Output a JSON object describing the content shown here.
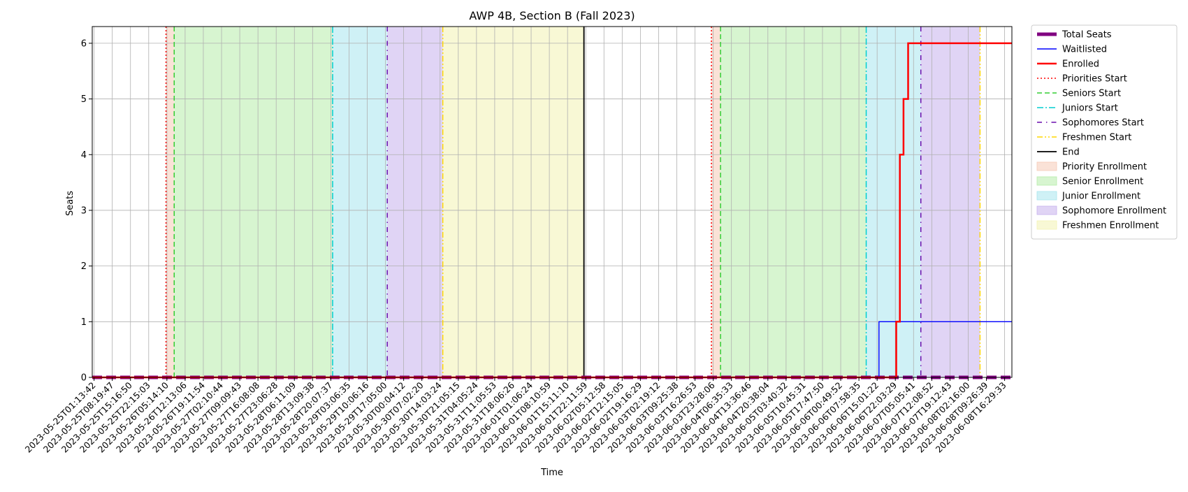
{
  "chart_data": {
    "type": "line",
    "title": "AWP 4B, Section B (Fall 2023)",
    "xlabel": "Time",
    "ylabel": "Seats",
    "ylim": [
      0,
      6.3
    ],
    "yticks": [
      0,
      1,
      2,
      3,
      4,
      5,
      6
    ],
    "grid": true,
    "legend_placement": "outside right",
    "x_ticks": [
      "2023-05-25T01:13:42",
      "2023-05-25T08:19:47",
      "2023-05-25T15:16:50",
      "2023-05-25T22:15:03",
      "2023-05-26T05:14:10",
      "2023-05-26T12:13:06",
      "2023-05-26T19:11:54",
      "2023-05-27T02:10:44",
      "2023-05-27T09:09:43",
      "2023-05-27T16:08:08",
      "2023-05-27T23:06:28",
      "2023-05-28T06:11:09",
      "2023-05-28T13:09:38",
      "2023-05-28T20:07:37",
      "2023-05-29T03:06:35",
      "2023-05-29T10:06:16",
      "2023-05-29T17:05:00",
      "2023-05-30T00:04:12",
      "2023-05-30T07:02:20",
      "2023-05-30T14:03:24",
      "2023-05-30T21:05:15",
      "2023-05-31T04:05:24",
      "2023-05-31T11:05:53",
      "2023-05-31T18:06:26",
      "2023-06-01T01:06:24",
      "2023-06-01T08:10:59",
      "2023-06-01T15:11:10",
      "2023-06-01T22:11:59",
      "2023-06-02T05:12:58",
      "2023-06-02T12:15:05",
      "2023-06-02T19:16:29",
      "2023-06-03T02:19:12",
      "2023-06-03T09:25:38",
      "2023-06-03T16:26:53",
      "2023-06-03T23:28:06",
      "2023-06-04T06:35:33",
      "2023-06-04T13:36:46",
      "2023-06-04T20:38:04",
      "2023-06-05T03:40:32",
      "2023-06-05T10:45:31",
      "2023-06-05T17:47:50",
      "2023-06-06T00:49:52",
      "2023-06-06T07:58:35",
      "2023-06-06T15:01:22",
      "2023-06-06T22:03:29",
      "2023-06-07T05:05:41",
      "2023-06-07T12:08:52",
      "2023-06-07T19:12:43",
      "2023-06-08T02:16:00",
      "2023-06-08T09:26:39",
      "2023-06-08T16:29:33"
    ],
    "x_range_ticks": [
      -0.1,
      50.4
    ],
    "series": [
      {
        "name": "Total Seats",
        "color": "#800080",
        "style": "thick-dashed",
        "points": [
          [
            -0.1,
            0
          ],
          [
            50.4,
            0
          ]
        ]
      },
      {
        "name": "Waitlisted",
        "color": "#0000ff",
        "style": "solid-thin",
        "points": [
          [
            -0.1,
            0
          ],
          [
            43.1,
            0
          ],
          [
            43.1,
            1
          ],
          [
            50.4,
            1
          ]
        ]
      },
      {
        "name": "Enrolled",
        "color": "#ff0000",
        "style": "solid-thick",
        "points": [
          [
            -0.1,
            0
          ],
          [
            44.05,
            0
          ],
          [
            44.05,
            1
          ],
          [
            44.25,
            1
          ],
          [
            44.25,
            4
          ],
          [
            44.45,
            4
          ],
          [
            44.45,
            5
          ],
          [
            44.7,
            5
          ],
          [
            44.7,
            6
          ],
          [
            50.4,
            6
          ]
        ]
      }
    ],
    "events": [
      {
        "name": "Priorities Start",
        "color": "#ff0000",
        "style": "dotted",
        "x": [
          3.95,
          33.9
        ]
      },
      {
        "name": "Seniors Start",
        "color": "#32cd32",
        "style": "dashed",
        "x": [
          4.4,
          34.4
        ]
      },
      {
        "name": "Juniors Start",
        "color": "#00ced1",
        "style": "dashdot",
        "x": [
          13.1,
          42.4
        ]
      },
      {
        "name": "Sophomores Start",
        "color": "#6a0dad",
        "style": "sparse-dashdot",
        "x": [
          16.1,
          45.4
        ]
      },
      {
        "name": "Freshmen Start",
        "color": "#ffd700",
        "style": "dashdotdot",
        "x": [
          19.15,
          48.65
        ]
      },
      {
        "name": "End",
        "color": "#000000",
        "style": "solid",
        "x": [
          26.9
        ]
      }
    ],
    "shaded_regions": [
      {
        "name": "Priority Enrollment",
        "color": "#f6cbb7",
        "ranges": [
          [
            3.95,
            4.4
          ],
          [
            33.9,
            34.4
          ]
        ]
      },
      {
        "name": "Senior Enrollment",
        "color": "#b6ecaa",
        "ranges": [
          [
            4.4,
            13.1
          ],
          [
            34.4,
            42.4
          ]
        ]
      },
      {
        "name": "Junior Enrollment",
        "color": "#a8e6ee",
        "ranges": [
          [
            13.1,
            16.1
          ],
          [
            42.4,
            45.4
          ]
        ]
      },
      {
        "name": "Sophomore Enrollment",
        "color": "#c6b1ed",
        "ranges": [
          [
            16.1,
            19.15
          ],
          [
            45.4,
            48.65
          ]
        ]
      },
      {
        "name": "Freshmen Enrollment",
        "color": "#f2f3b3",
        "ranges": [
          [
            19.15,
            26.9
          ]
        ]
      }
    ],
    "legend": [
      {
        "label": "Total Seats",
        "kind": "line",
        "ref": "Total Seats"
      },
      {
        "label": "Waitlisted",
        "kind": "line",
        "ref": "Waitlisted"
      },
      {
        "label": "Enrolled",
        "kind": "line",
        "ref": "Enrolled"
      },
      {
        "label": "Priorities Start",
        "kind": "event",
        "ref": "Priorities Start"
      },
      {
        "label": "Seniors Start",
        "kind": "event",
        "ref": "Seniors Start"
      },
      {
        "label": "Juniors Start",
        "kind": "event",
        "ref": "Juniors Start"
      },
      {
        "label": "Sophomores Start",
        "kind": "event",
        "ref": "Sophomores Start"
      },
      {
        "label": "Freshmen Start",
        "kind": "event",
        "ref": "Freshmen Start"
      },
      {
        "label": "End",
        "kind": "event",
        "ref": "End"
      },
      {
        "label": "Priority Enrollment",
        "kind": "patch",
        "ref": "Priority Enrollment"
      },
      {
        "label": "Senior Enrollment",
        "kind": "patch",
        "ref": "Senior Enrollment"
      },
      {
        "label": "Junior Enrollment",
        "kind": "patch",
        "ref": "Junior Enrollment"
      },
      {
        "label": "Sophomore Enrollment",
        "kind": "patch",
        "ref": "Sophomore Enrollment"
      },
      {
        "label": "Freshmen Enrollment",
        "kind": "patch",
        "ref": "Freshmen Enrollment"
      }
    ]
  }
}
